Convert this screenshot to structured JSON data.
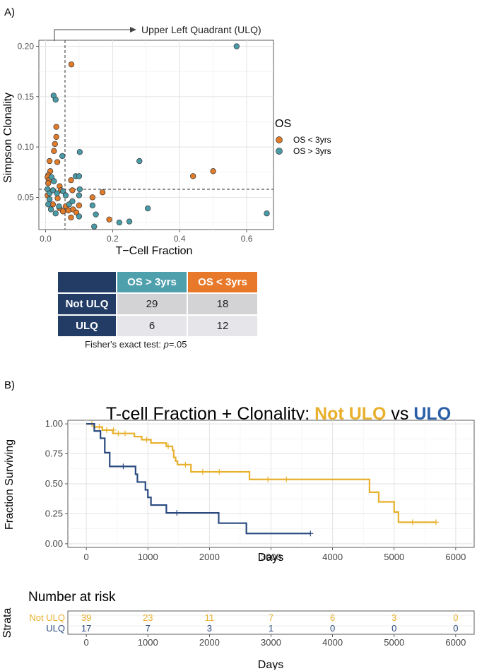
{
  "panel_a_label": "A)",
  "panel_b_label": "B)",
  "ulq_callout": "Upper Left Quadrant (ULQ)",
  "colors": {
    "os_lt_3": "#e07b2a",
    "os_gt_3": "#4a9ba8",
    "not_ulq": "#e8b02d",
    "ulq": "#2a4a80",
    "table_dark": "#233c66"
  },
  "contingency": {
    "col1": "OS > 3yrs",
    "col2": "OS < 3yrs",
    "col1_color": "#4fa0ad",
    "col2_color": "#e8792a",
    "rows": [
      {
        "label": "Not ULQ",
        "v1": "29",
        "v2": "18",
        "bg": "#d3d3d6"
      },
      {
        "label": "ULQ",
        "v1": "6",
        "v2": "12",
        "bg": "#e6e6ea"
      }
    ],
    "fisher_prefix": "Fisher's exact test: ",
    "fisher_p": "p",
    "fisher_suffix": "=.05"
  },
  "chart_data": [
    {
      "type": "scatter",
      "title": "",
      "xlabel": "T−Cell Fraction",
      "ylabel": "Simpson Clonality",
      "xlim": [
        -0.02,
        0.68
      ],
      "ylim": [
        0.018,
        0.206
      ],
      "xticks": [
        0,
        0.2,
        0.4,
        0.6
      ],
      "xtick_labels": [
        "0.0",
        "0.2",
        "0.4",
        "0.6"
      ],
      "yticks": [
        0.05,
        0.1,
        0.15,
        0.2
      ],
      "ytick_labels": [
        "0.05",
        "0.10",
        "0.15",
        "0.20"
      ],
      "grid": true,
      "threshold_x": 0.058,
      "threshold_y": 0.058,
      "legend_title": "OS",
      "legend_position": "right",
      "series": [
        {
          "name": "OS < 3yrs",
          "color": "#e07b2a",
          "points": [
            [
              0.077,
              0.182
            ],
            [
              0.032,
              0.12
            ],
            [
              0.032,
              0.11
            ],
            [
              0.028,
              0.103
            ],
            [
              0.025,
              0.096
            ],
            [
              0.035,
              0.085
            ],
            [
              0.012,
              0.086
            ],
            [
              0.014,
              0.076
            ],
            [
              0.008,
              0.072
            ],
            [
              0.006,
              0.07
            ],
            [
              0.01,
              0.067
            ],
            [
              0.008,
              0.064
            ],
            [
              0.042,
              0.061
            ],
            [
              0.046,
              0.057
            ],
            [
              0.076,
              0.067
            ],
            [
              0.08,
              0.057
            ],
            [
              0.006,
              0.052
            ],
            [
              0.036,
              0.049
            ],
            [
              0.022,
              0.043
            ],
            [
              0.042,
              0.039
            ],
            [
              0.06,
              0.041
            ],
            [
              0.068,
              0.037
            ],
            [
              0.052,
              0.036
            ],
            [
              0.082,
              0.038
            ],
            [
              0.092,
              0.035
            ],
            [
              0.076,
              0.03
            ],
            [
              0.1,
              0.042
            ],
            [
              0.14,
              0.05
            ],
            [
              0.17,
              0.055
            ],
            [
              0.19,
              0.028
            ],
            [
              0.44,
              0.071
            ],
            [
              0.5,
              0.076
            ]
          ]
        },
        {
          "name": "OS > 3yrs",
          "color": "#4a9ba8",
          "points": [
            [
              0.57,
              0.2
            ],
            [
              0.024,
              0.151
            ],
            [
              0.03,
              0.147
            ],
            [
              0.018,
              0.07
            ],
            [
              0.025,
              0.066
            ],
            [
              0.05,
              0.091
            ],
            [
              0.102,
              0.095
            ],
            [
              0.09,
              0.071
            ],
            [
              0.1,
              0.071
            ],
            [
              0.28,
              0.086
            ],
            [
              0.006,
              0.058
            ],
            [
              0.012,
              0.054
            ],
            [
              0.022,
              0.057
            ],
            [
              0.034,
              0.054
            ],
            [
              0.052,
              0.056
            ],
            [
              0.102,
              0.058
            ],
            [
              0.012,
              0.048
            ],
            [
              0.06,
              0.052
            ],
            [
              0.1,
              0.052
            ],
            [
              0.008,
              0.043
            ],
            [
              0.016,
              0.038
            ],
            [
              0.03,
              0.034
            ],
            [
              0.04,
              0.041
            ],
            [
              0.07,
              0.043
            ],
            [
              0.08,
              0.046
            ],
            [
              0.14,
              0.042
            ],
            [
              0.15,
              0.033
            ],
            [
              0.1,
              0.031
            ],
            [
              0.145,
              0.021
            ],
            [
              0.22,
              0.025
            ],
            [
              0.25,
              0.026
            ],
            [
              0.305,
              0.039
            ],
            [
              0.66,
              0.034
            ]
          ]
        }
      ]
    },
    {
      "type": "line",
      "title_prefix": "T-cell Fraction + Clonality: ",
      "title_a": "Not ULQ",
      "title_mid": " vs ",
      "title_b": "ULQ",
      "xlabel": "Days",
      "ylabel": "Fraction Surviving",
      "xlim": [
        -300,
        6300
      ],
      "ylim": [
        -0.03,
        1.03
      ],
      "xticks": [
        0,
        1000,
        2000,
        3000,
        4000,
        5000,
        6000
      ],
      "yticks": [
        0.0,
        0.25,
        0.5,
        0.75,
        1.0
      ],
      "ytick_labels": [
        "0.00",
        "0.25",
        "0.50",
        "0.75",
        "1.00"
      ],
      "grid": true,
      "series": [
        {
          "name": "Not ULQ",
          "color": "#e8b02d",
          "steps": [
            [
              0,
              1.0
            ],
            [
              120,
              0.974
            ],
            [
              260,
              0.948
            ],
            [
              430,
              0.92
            ],
            [
              780,
              0.894
            ],
            [
              900,
              0.868
            ],
            [
              1050,
              0.84
            ],
            [
              1300,
              0.812
            ],
            [
              1400,
              0.78
            ],
            [
              1420,
              0.72
            ],
            [
              1450,
              0.69
            ],
            [
              1480,
              0.66
            ],
            [
              1700,
              0.6
            ],
            [
              2650,
              0.537
            ],
            [
              4600,
              0.43
            ],
            [
              4750,
              0.35
            ],
            [
              5000,
              0.265
            ],
            [
              5070,
              0.18
            ],
            [
              5680,
              0.18
            ]
          ],
          "censors": [
            [
              90,
              1.0
            ],
            [
              210,
              0.974
            ],
            [
              330,
              0.948
            ],
            [
              440,
              0.948
            ],
            [
              520,
              0.92
            ],
            [
              630,
              0.92
            ],
            [
              980,
              0.868
            ],
            [
              1330,
              0.812
            ],
            [
              1610,
              0.66
            ],
            [
              1890,
              0.6
            ],
            [
              2160,
              0.6
            ],
            [
              2950,
              0.537
            ],
            [
              3250,
              0.537
            ],
            [
              5300,
              0.18
            ],
            [
              5680,
              0.18
            ]
          ]
        },
        {
          "name": "ULQ",
          "color": "#2a4a80",
          "steps": [
            [
              0,
              1.0
            ],
            [
              130,
              0.94
            ],
            [
              230,
              0.88
            ],
            [
              300,
              0.76
            ],
            [
              380,
              0.645
            ],
            [
              800,
              0.58
            ],
            [
              830,
              0.515
            ],
            [
              960,
              0.45
            ],
            [
              1000,
              0.387
            ],
            [
              1050,
              0.323
            ],
            [
              1300,
              0.258
            ],
            [
              2150,
              0.172
            ],
            [
              2600,
              0.086
            ],
            [
              3640,
              0.086
            ]
          ],
          "censors": [
            [
              600,
              0.645
            ],
            [
              1470,
              0.258
            ],
            [
              3640,
              0.086
            ]
          ]
        }
      ]
    },
    {
      "type": "table",
      "title": "Number at risk",
      "ylabel": "Strata",
      "xlabel": "Days",
      "times": [
        0,
        1000,
        2000,
        3000,
        4000,
        5000,
        6000
      ],
      "xlim": [
        -300,
        6300
      ],
      "rows": [
        {
          "label": "Not ULQ",
          "color": "#e8b02d",
          "values": [
            39,
            23,
            11,
            7,
            6,
            3,
            0
          ]
        },
        {
          "label": "ULQ",
          "color": "#2a4a80",
          "values": [
            17,
            7,
            3,
            1,
            0,
            0,
            0
          ]
        }
      ]
    }
  ]
}
